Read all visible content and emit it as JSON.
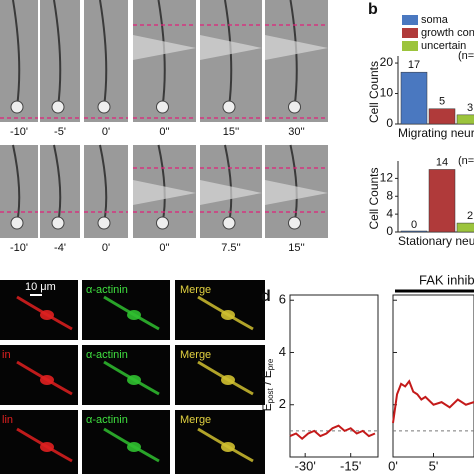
{
  "panel_letters": {
    "b": "b",
    "d": "d"
  },
  "figure_a": {
    "row1_labels": [
      "-10'",
      "-5'",
      "0'",
      "0''",
      "15''",
      "30''"
    ],
    "row2_labels": [
      "-10'",
      "-4'",
      "0'",
      "0''",
      "7.5''",
      "15''"
    ]
  },
  "figure_c": {
    "scale_bar": "10 μm",
    "rows": [
      {
        "stain": "",
        "actinin": "α-actinin",
        "merge": "Merge"
      },
      {
        "stain": "in",
        "actinin": "α-actinin",
        "merge": "Merge"
      },
      {
        "stain": "lin",
        "actinin": "α-actinin",
        "merge": "Merge"
      }
    ]
  },
  "chart_data": [
    {
      "type": "bar",
      "ylabel": "Cell Counts",
      "xlabel": "Migrating neurons",
      "annotation": "(n=",
      "series": [
        {
          "name": "soma",
          "color": "#4a78c0",
          "values": [
            17
          ]
        },
        {
          "name": "growth cone",
          "color": "#b03a3a",
          "values": [
            5
          ]
        },
        {
          "name": "uncertain",
          "color": "#9cc43c",
          "values": [
            3
          ]
        }
      ],
      "ylim": [
        0,
        21
      ],
      "yticks": [
        0,
        10,
        20
      ]
    },
    {
      "type": "bar",
      "ylabel": "Cell Counts",
      "xlabel": "Stationary neurons",
      "annotation": "(n=",
      "series": [
        {
          "color": "#4a78c0",
          "values": [
            0
          ]
        },
        {
          "color": "#b03a3a",
          "values": [
            14
          ]
        },
        {
          "color": "#9cc43c",
          "values": [
            2
          ]
        }
      ],
      "ylim": [
        0,
        15
      ],
      "yticks": [
        0,
        4,
        8,
        12
      ]
    },
    {
      "type": "line",
      "ylabel_parts": [
        "E",
        "post",
        " / E",
        "pre"
      ],
      "reference_line": 1,
      "x": [
        -35,
        -33,
        -31,
        -29,
        -27,
        -25,
        -23,
        -21,
        -19,
        -17,
        -15,
        -13,
        -11,
        -9,
        -7
      ],
      "series": [
        {
          "color": "#c41a1a",
          "values": [
            0.8,
            0.9,
            0.7,
            0.9,
            1.0,
            0.8,
            0.9,
            1.1,
            1.2,
            1.0,
            1.1,
            0.9,
            1.0,
            0.8,
            0.9
          ]
        }
      ],
      "xlim": [
        -35,
        -6
      ],
      "xticks": [
        {
          "value": -30,
          "label": "-30'"
        },
        {
          "value": -15,
          "label": "-15'"
        }
      ],
      "ylim": [
        0,
        6.2
      ],
      "yticks": [
        2,
        4,
        6
      ]
    },
    {
      "type": "line",
      "title": "FAK inhibitor",
      "reference_line": 1,
      "x": [
        0,
        0.5,
        1,
        1.5,
        2,
        2.5,
        3,
        3.5,
        4,
        5,
        6,
        7,
        8,
        9,
        10
      ],
      "series": [
        {
          "color": "#c41a1a",
          "values": [
            1.3,
            2.4,
            2.8,
            2.7,
            2.9,
            2.5,
            2.4,
            2.2,
            2.3,
            2.0,
            2.1,
            1.9,
            2.2,
            2.0,
            2.1
          ]
        }
      ],
      "xlim": [
        0,
        10
      ],
      "xticks": [
        {
          "value": 0,
          "label": "0'"
        },
        {
          "value": 5,
          "label": "5'"
        }
      ],
      "ylim": [
        0,
        6.2
      ],
      "yticks": [
        2,
        4,
        6
      ],
      "tick_labels": false
    }
  ]
}
